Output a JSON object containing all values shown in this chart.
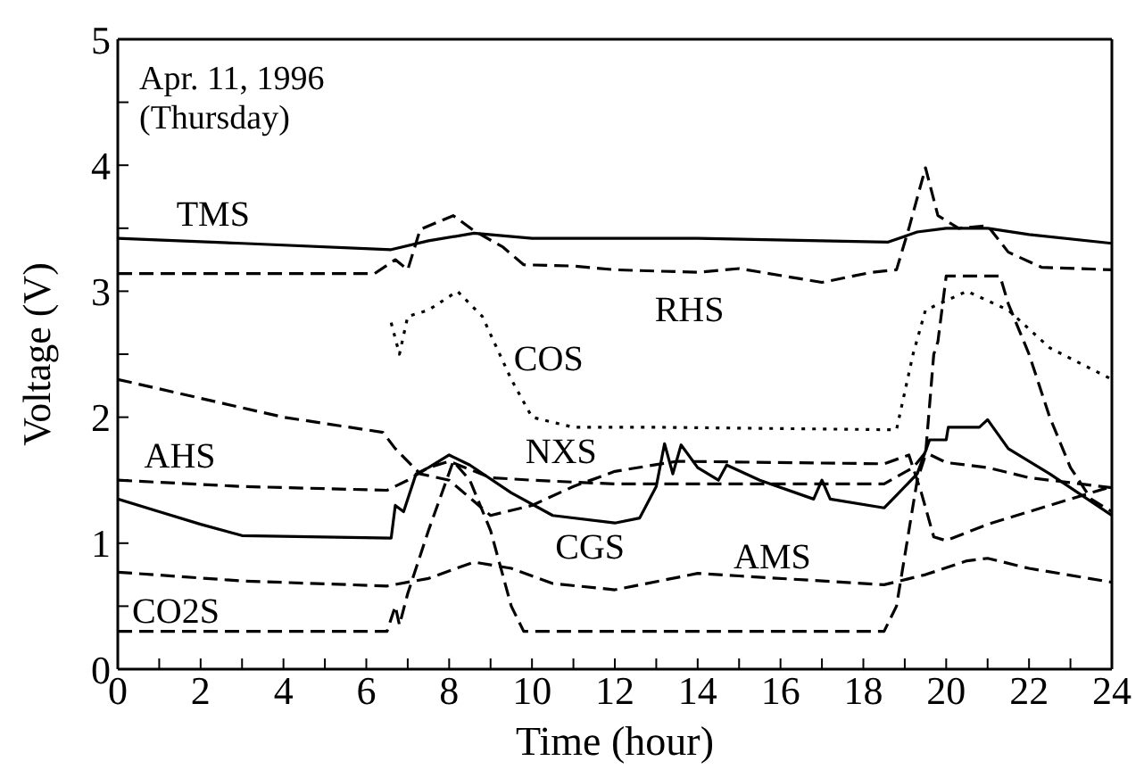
{
  "chart_data": {
    "type": "line",
    "xlabel": "Time (hour)",
    "ylabel": "Voltage (V)",
    "xlim": [
      0,
      24
    ],
    "ylim": [
      0,
      5
    ],
    "xticks": [
      0,
      {
        "value": 1,
        "label": null
      },
      2,
      {
        "value": 3,
        "label": null
      },
      4,
      {
        "value": 5,
        "label": null
      },
      6,
      {
        "value": 7,
        "label": null
      },
      8,
      {
        "value": 9,
        "label": null
      },
      10,
      {
        "value": 11,
        "label": null
      },
      12,
      {
        "value": 13,
        "label": null
      },
      14,
      {
        "value": 15,
        "label": null
      },
      16,
      {
        "value": 17,
        "label": null
      },
      18,
      {
        "value": 19,
        "label": null
      },
      20,
      {
        "value": 21,
        "label": null
      },
      22,
      {
        "value": 23,
        "label": null
      },
      24
    ],
    "yticks": [
      0,
      {
        "value": 0.5,
        "label": null
      },
      1,
      {
        "value": 1.5,
        "label": null
      },
      2,
      {
        "value": 2.5,
        "label": null
      },
      3,
      {
        "value": 3.5,
        "label": null
      },
      4,
      {
        "value": 4.5,
        "label": null
      },
      5
    ],
    "annotations": [
      "Apr. 11, 1996",
      "(Thursday)"
    ],
    "marker": "none",
    "series": [
      {
        "name": "TMS",
        "color": "#000000",
        "line_style": "solid",
        "x": [
          0,
          3,
          6.6,
          7.5,
          8.6,
          10,
          14,
          18.6,
          19.3,
          20,
          21,
          22,
          24
        ],
        "values": [
          3.42,
          3.38,
          3.33,
          3.4,
          3.46,
          3.42,
          3.42,
          3.39,
          3.47,
          3.5,
          3.5,
          3.45,
          3.38
        ]
      },
      {
        "name": "RHS",
        "color": "#000000",
        "line_style": "dashed",
        "x": [
          0,
          6.2,
          6.7,
          7,
          7.3,
          8.1,
          8.6,
          9.3,
          9.8,
          11,
          12,
          14,
          15,
          17,
          18.2,
          18.8,
          19.1,
          19.5,
          19.8,
          20.3,
          21,
          21.5,
          22.3,
          24
        ],
        "values": [
          3.14,
          3.14,
          3.25,
          3.17,
          3.49,
          3.6,
          3.48,
          3.35,
          3.21,
          3.2,
          3.17,
          3.15,
          3.18,
          3.07,
          3.15,
          3.17,
          3.5,
          3.98,
          3.6,
          3.5,
          3.52,
          3.31,
          3.19,
          3.17
        ]
      },
      {
        "name": "COS",
        "color": "#000000",
        "line_style": "dotted",
        "x": [
          6.6,
          6.8,
          7,
          7.5,
          8.2,
          8.8,
          9.5,
          10,
          11,
          13,
          18.8,
          19.2,
          19.5,
          20.5,
          21.5,
          22.5,
          24
        ],
        "values": [
          2.75,
          2.5,
          2.8,
          2.85,
          3.0,
          2.8,
          2.3,
          2.0,
          1.92,
          1.92,
          1.9,
          2.5,
          2.85,
          3.0,
          2.85,
          2.55,
          2.3
        ]
      },
      {
        "name": "NXS",
        "color": "#000000",
        "line_style": "dashed",
        "x": [
          0,
          2,
          4,
          6.4,
          6.7,
          7.3,
          8,
          9,
          10,
          11,
          12,
          13.5,
          18.5,
          19.1,
          19.4,
          19.7,
          20,
          21,
          23,
          24
        ],
        "values": [
          2.3,
          2.15,
          2.0,
          1.88,
          1.75,
          1.55,
          1.5,
          1.22,
          1.3,
          1.45,
          1.57,
          1.65,
          1.63,
          1.7,
          1.4,
          1.05,
          1.02,
          1.15,
          1.35,
          1.45
        ]
      },
      {
        "name": "AHS",
        "color": "#000000",
        "line_style": "dashed",
        "x": [
          0,
          3,
          6.5,
          7,
          7.5,
          8,
          9,
          10,
          12,
          18.5,
          19.2,
          19.5,
          20,
          21,
          22,
          24
        ],
        "values": [
          1.5,
          1.45,
          1.42,
          1.5,
          1.6,
          1.65,
          1.52,
          1.5,
          1.47,
          1.47,
          1.6,
          1.72,
          1.64,
          1.6,
          1.52,
          1.44
        ]
      },
      {
        "name": "CGS",
        "color": "#000000",
        "line_style": "solid",
        "x": [
          0,
          1,
          2,
          3,
          6.6,
          6.7,
          6.9,
          7.2,
          7.5,
          8,
          8.5,
          9.5,
          10.5,
          12,
          12.6,
          13,
          13.2,
          13.4,
          13.6,
          14,
          14.5,
          14.7,
          15.5,
          16.8,
          17,
          17.2,
          18.5,
          18.8,
          19.3,
          19.6,
          20,
          20.05,
          20.8,
          21,
          21.5,
          22.5,
          24
        ],
        "values": [
          1.35,
          1.25,
          1.15,
          1.06,
          1.04,
          1.3,
          1.25,
          1.55,
          1.6,
          1.7,
          1.62,
          1.4,
          1.22,
          1.16,
          1.2,
          1.45,
          1.79,
          1.55,
          1.78,
          1.6,
          1.5,
          1.62,
          1.5,
          1.35,
          1.5,
          1.35,
          1.28,
          1.38,
          1.55,
          1.82,
          1.82,
          1.92,
          1.92,
          1.98,
          1.75,
          1.55,
          1.22
        ]
      },
      {
        "name": "AMS",
        "color": "#000000",
        "line_style": "dashed",
        "x": [
          0,
          3,
          6.5,
          7.5,
          8.6,
          9.5,
          10.5,
          12,
          14,
          15,
          18.5,
          19.5,
          20.5,
          21,
          22,
          24
        ],
        "values": [
          0.77,
          0.7,
          0.66,
          0.72,
          0.85,
          0.8,
          0.68,
          0.63,
          0.76,
          0.74,
          0.67,
          0.75,
          0.86,
          0.88,
          0.8,
          0.69
        ]
      },
      {
        "name": "CO2S",
        "color": "#000000",
        "line_style": "dashed",
        "x": [
          0,
          6.5,
          6.7,
          6.8,
          7,
          7.5,
          8.1,
          8.5,
          9,
          9.5,
          9.8,
          18.5,
          18.8,
          19.3,
          19.5,
          19.7,
          19.8,
          20,
          21.3,
          21.5,
          22,
          22.5,
          23,
          23.5,
          24
        ],
        "values": [
          0.3,
          0.3,
          0.5,
          0.35,
          0.6,
          1.1,
          1.65,
          1.5,
          1.1,
          0.5,
          0.3,
          0.3,
          0.5,
          1.5,
          1.7,
          2.5,
          2.6,
          3.12,
          3.12,
          2.9,
          2.5,
          2.0,
          1.6,
          1.35,
          1.25
        ]
      }
    ]
  }
}
